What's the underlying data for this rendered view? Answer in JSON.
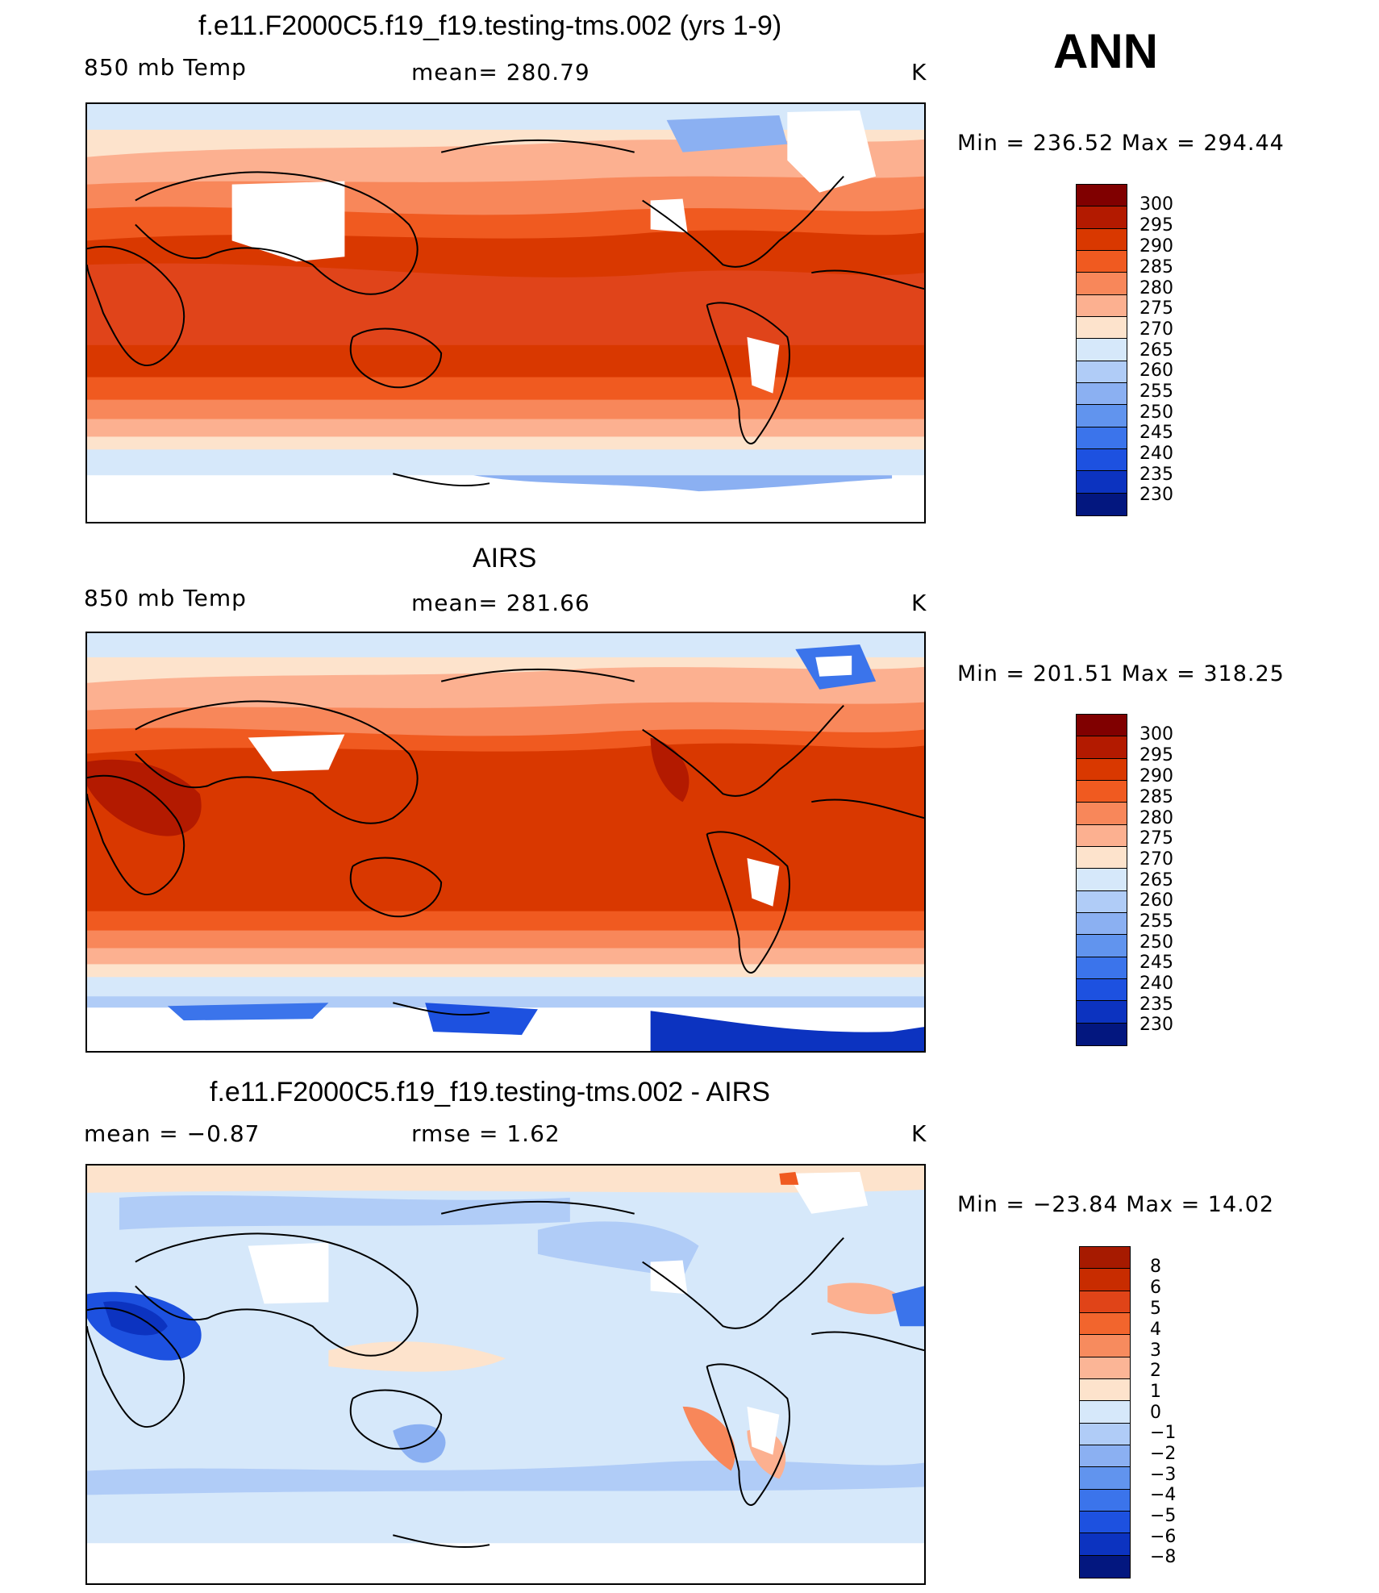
{
  "season": "ANN",
  "colors": {
    "abs_scale": [
      "#800000",
      "#b31a00",
      "#d93800",
      "#f05a20",
      "#f8875a",
      "#fcb090",
      "#fde3cc",
      "#d6e8fa",
      "#b0ccf7",
      "#8bb0f2",
      "#6194ee",
      "#3b74eb",
      "#1d51e0",
      "#0c33c0",
      "#03177f"
    ],
    "diff_scale": [
      "#a61a00",
      "#c82c00",
      "#e04418",
      "#f2652d",
      "#f78b5e",
      "#fbb596",
      "#fde3cc",
      "#d6e8fa",
      "#b0ccf7",
      "#8bb0f2",
      "#6194ee",
      "#3b74eb",
      "#1d51e0",
      "#0c33c0",
      "#03177f"
    ]
  },
  "panels": [
    {
      "id": "model",
      "title": "f.e11.F2000C5.f19_f19.testing-tms.002 (yrs 1-9)",
      "left_label": "850 mb Temp",
      "center_label": "mean=  280.79",
      "units": "K",
      "min_max": "Min  =  236.52  Max  =  294.44",
      "colorbar_labels": [
        "300",
        "295",
        "290",
        "285",
        "280",
        "275",
        "270",
        "265",
        "260",
        "255",
        "250",
        "245",
        "240",
        "235",
        "230"
      ]
    },
    {
      "id": "obs",
      "title": "AIRS",
      "left_label": "850 mb Temp",
      "center_label": "mean=  281.66",
      "units": "K",
      "min_max": "Min  =  201.51  Max  =  318.25",
      "colorbar_labels": [
        "300",
        "295",
        "290",
        "285",
        "280",
        "275",
        "270",
        "265",
        "260",
        "255",
        "250",
        "245",
        "240",
        "235",
        "230"
      ]
    },
    {
      "id": "diff",
      "title": "f.e11.F2000C5.f19_f19.testing-tms.002 - AIRS",
      "left_label": "mean  =     −0.87",
      "center_label": "rmse  =     1.62",
      "units": "K",
      "min_max": "Min  =  −23.84  Max  =    14.02",
      "colorbar_labels": [
        "8",
        "6",
        "5",
        "4",
        "3",
        "2",
        "1",
        "0",
        "−1",
        "−2",
        "−3",
        "−4",
        "−5",
        "−6",
        "−8"
      ]
    }
  ]
}
